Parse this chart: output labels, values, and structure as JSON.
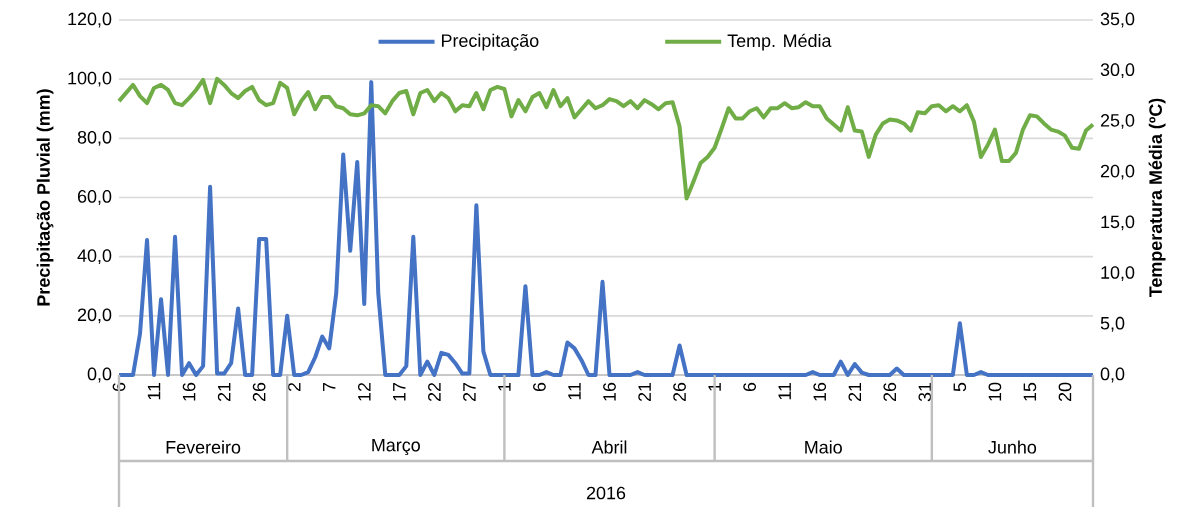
{
  "chart_data": {
    "type": "line",
    "ylabel": "Precipitação Pluvial (mm)",
    "y2label": "Temperatura Média (ºC)",
    "categories": [
      "6",
      null,
      null,
      null,
      null,
      "11",
      null,
      null,
      null,
      null,
      "16",
      null,
      null,
      null,
      null,
      "21",
      null,
      null,
      null,
      null,
      "26",
      null,
      null,
      null,
      null,
      "2",
      null,
      null,
      null,
      null,
      "7",
      null,
      null,
      null,
      null,
      "12",
      null,
      null,
      null,
      null,
      "17",
      null,
      null,
      null,
      null,
      "22",
      null,
      null,
      null,
      null,
      "27",
      null,
      null,
      null,
      null,
      "1",
      null,
      null,
      null,
      null,
      "6",
      null,
      null,
      null,
      null,
      "11",
      null,
      null,
      null,
      null,
      "16",
      null,
      null,
      null,
      null,
      "21",
      null,
      null,
      null,
      null,
      "26",
      null,
      null,
      null,
      null,
      "1",
      null,
      null,
      null,
      null,
      "6",
      null,
      null,
      null,
      null,
      "11",
      null,
      null,
      null,
      null,
      "16",
      null,
      null,
      null,
      null,
      "21",
      null,
      null,
      null,
      null,
      "26",
      null,
      null,
      null,
      null,
      "31",
      null,
      null,
      null,
      null,
      "5",
      null,
      null,
      null,
      null,
      "10",
      null,
      null,
      null,
      null,
      "15",
      null,
      null,
      null,
      null,
      "20",
      null,
      null,
      null,
      null
    ],
    "series": [
      {
        "name": "Precipitação",
        "color": "#4472c4",
        "values": [
          0,
          0,
          0,
          14,
          45.6,
          0,
          25.6,
          0,
          46.7,
          0,
          4,
          0,
          3,
          63.6,
          0.5,
          0.5,
          4,
          22.5,
          0,
          0,
          46,
          46,
          0,
          0,
          20,
          0,
          0,
          1,
          6,
          13,
          9,
          27.6,
          74.5,
          42,
          72,
          24,
          99,
          27.6,
          0,
          0,
          0,
          3,
          46.7,
          0,
          4.5,
          0,
          7.5,
          6.8,
          4,
          0.5,
          0.5,
          57.4,
          8,
          0,
          0,
          0,
          0,
          0,
          30,
          0,
          0,
          1,
          0,
          0,
          11,
          9,
          5,
          0,
          0,
          31.5,
          0,
          0,
          0,
          0,
          1,
          0,
          0,
          0,
          0,
          0,
          10,
          0,
          0,
          0,
          0,
          0,
          0,
          0,
          0,
          0,
          0,
          0,
          0,
          0,
          0,
          0,
          0,
          0,
          0,
          1,
          0,
          0,
          0,
          4.5,
          0,
          3.7,
          0.8,
          0,
          0,
          0,
          0,
          2.2,
          0,
          0,
          0,
          0,
          0,
          0,
          0,
          0,
          17.5,
          0,
          0,
          1,
          0,
          0,
          0,
          0,
          0,
          0,
          0,
          0,
          0,
          0,
          0,
          0,
          0,
          0,
          0,
          0
        ]
      },
      {
        "name": "Temp. Média",
        "color": "#70ad47",
        "axis": "y2",
        "values": [
          27.0,
          27.8,
          28.6,
          27.5,
          26.8,
          28.3,
          28.6,
          28.1,
          26.8,
          26.6,
          27.3,
          28.1,
          29.1,
          26.8,
          29.2,
          28.6,
          27.8,
          27.3,
          28.0,
          28.4,
          27.1,
          26.6,
          26.8,
          28.8,
          28.3,
          25.7,
          27.0,
          27.9,
          26.2,
          27.4,
          27.4,
          26.5,
          26.3,
          25.7,
          25.6,
          25.8,
          26.6,
          26.5,
          25.8,
          27.0,
          27.8,
          28.0,
          25.7,
          27.8,
          28.1,
          27.0,
          27.8,
          27.3,
          26.0,
          26.6,
          26.5,
          27.8,
          26.2,
          28.1,
          28.4,
          28.2,
          25.5,
          27.1,
          26.0,
          27.4,
          27.8,
          26.4,
          28.1,
          26.5,
          27.3,
          25.4,
          26.2,
          27.0,
          26.3,
          26.6,
          27.2,
          27.0,
          26.5,
          27.0,
          26.3,
          27.1,
          26.7,
          26.2,
          26.8,
          26.9,
          24.5,
          17.4,
          19.1,
          20.9,
          21.5,
          22.4,
          24.3,
          26.3,
          25.3,
          25.3,
          26.0,
          26.3,
          25.4,
          26.3,
          26.3,
          26.8,
          26.3,
          26.4,
          26.9,
          26.5,
          26.5,
          25.3,
          24.7,
          24.1,
          26.4,
          24.1,
          24.0,
          21.5,
          23.7,
          24.8,
          25.2,
          25.1,
          24.8,
          24.1,
          25.9,
          25.8,
          26.5,
          26.6,
          26.0,
          26.5,
          26.0,
          26.6,
          25.0,
          21.5,
          22.7,
          24.2,
          21.1,
          21.1,
          21.9,
          24.2,
          25.6,
          25.5,
          24.8,
          24.2,
          24.0,
          23.6,
          22.4,
          22.3,
          24.1,
          24.7
        ]
      }
    ],
    "ylim": [
      0,
      120
    ],
    "yticks": [
      {
        "value": 0,
        "label": "0,0"
      },
      {
        "value": 20,
        "label": "20,0"
      },
      {
        "value": 40,
        "label": "40,0"
      },
      {
        "value": 60,
        "label": "60,0"
      },
      {
        "value": 80,
        "label": "80,0"
      },
      {
        "value": 100,
        "label": "100,0"
      },
      {
        "value": 120,
        "label": "120,0"
      }
    ],
    "y2lim": [
      0,
      35
    ],
    "y2ticks": [
      {
        "value": 0,
        "label": "0,0"
      },
      {
        "value": 5,
        "label": "5,0"
      },
      {
        "value": 10,
        "label": "10,0"
      },
      {
        "value": 15,
        "label": "15,0"
      },
      {
        "value": 20,
        "label": "20,0"
      },
      {
        "value": 25,
        "label": "25,0"
      },
      {
        "value": 30,
        "label": "30,0"
      },
      {
        "value": 35,
        "label": "35,0"
      }
    ],
    "grid": "y",
    "legend": "top",
    "marker": "none",
    "line_style": "solid",
    "annotations": [
      "Fevereiro",
      "Março",
      "Abril",
      "Maio",
      "Junho",
      "2016"
    ]
  }
}
